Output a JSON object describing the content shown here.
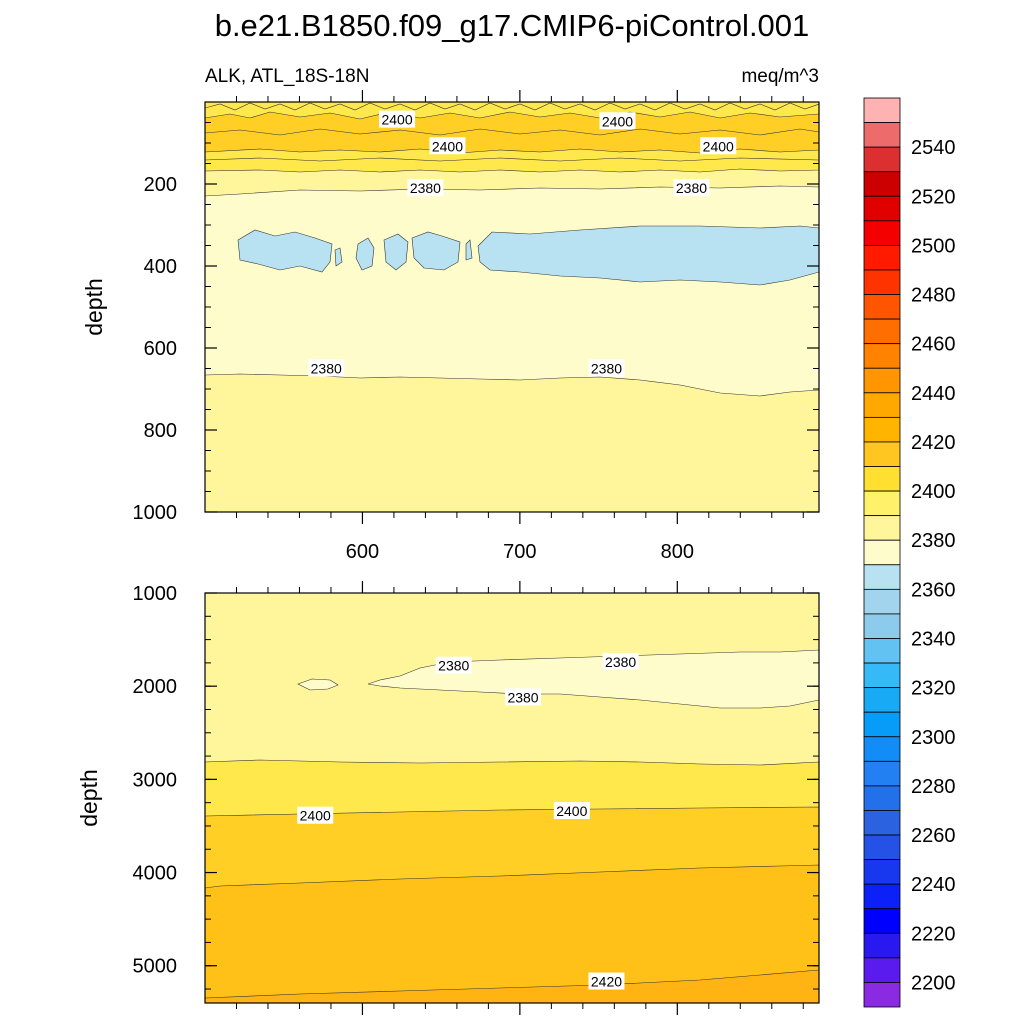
{
  "chart_data": {
    "type": "contour",
    "title": "b.e21.B1850.f09_g17.CMIP6-piControl.001",
    "subtitle_left": "ALK, ATL_18S-18N",
    "subtitle_right": "meq/m^3",
    "colors": {
      "band_2380_2390": "#fffccc",
      "band_2390_2400": "#fff59a",
      "band_2400_2410": "#ffe84c",
      "band_2410_2420": "#ffcf26",
      "band_2420_2430": "#ffbb14",
      "band_2360_2370": "#b8e2f2",
      "contour_line": "#333333"
    },
    "panels": [
      {
        "name": "upper",
        "xlim": [
          500,
          890
        ],
        "ylim": [
          0,
          1000
        ],
        "ylabel": "depth",
        "x_ticks": [
          "600",
          "700",
          "800"
        ],
        "y_ticks": [
          "200",
          "400",
          "600",
          "800",
          "1000"
        ],
        "contour_labels": [
          {
            "text": "2400",
            "x": 622,
            "y": 43
          },
          {
            "text": "2400",
            "x": 762,
            "y": 47
          },
          {
            "text": "2400",
            "x": 654,
            "y": 108
          },
          {
            "text": "2400",
            "x": 826,
            "y": 108
          },
          {
            "text": "2380",
            "x": 640,
            "y": 210
          },
          {
            "text": "2380",
            "x": 809,
            "y": 210
          },
          {
            "text": "2380",
            "x": 577,
            "y": 650
          },
          {
            "text": "2380",
            "x": 755,
            "y": 650
          }
        ]
      },
      {
        "name": "lower",
        "xlim": [
          500,
          890
        ],
        "ylim": [
          1000,
          5400
        ],
        "ylabel": "depth",
        "x_ticks": [],
        "y_ticks": [
          "1000",
          "2000",
          "3000",
          "4000",
          "5000"
        ],
        "contour_labels": [
          {
            "text": "2380",
            "x": 658,
            "y": 1780
          },
          {
            "text": "2380",
            "x": 764,
            "y": 1740
          },
          {
            "text": "2380",
            "x": 702,
            "y": 2120
          },
          {
            "text": "2400",
            "x": 570,
            "y": 3390
          },
          {
            "text": "2400",
            "x": 733,
            "y": 3340
          },
          {
            "text": "2420",
            "x": 755,
            "y": 5170
          }
        ]
      }
    ],
    "colorbar": {
      "labels": [
        "2540",
        "2520",
        "2500",
        "2480",
        "2460",
        "2440",
        "2420",
        "2400",
        "2380",
        "2360",
        "2340",
        "2320",
        "2300",
        "2280",
        "2260",
        "2240",
        "2220",
        "2200"
      ],
      "colors_top_to_bottom": [
        "#ffb2b2",
        "#ee6b6b",
        "#dc2f2f",
        "#cc0000",
        "#e00000",
        "#f50000",
        "#ff1a00",
        "#ff3300",
        "#ff5500",
        "#ff6e00",
        "#ff8200",
        "#ff9600",
        "#ffa800",
        "#ffb400",
        "#ffc520",
        "#ffe030",
        "#fff26a",
        "#fff59a",
        "#fffccc",
        "#b8e2f2",
        "#a3d4ee",
        "#8ccbec",
        "#62c3f2",
        "#36b9f7",
        "#18aaf5",
        "#079cf7",
        "#128df7",
        "#2280f2",
        "#2270ea",
        "#2a62e0",
        "#2452e6",
        "#1838f0",
        "#0c20f8",
        "#0000ff",
        "#2a18f0",
        "#5a1cee",
        "#8a2be2"
      ]
    }
  }
}
